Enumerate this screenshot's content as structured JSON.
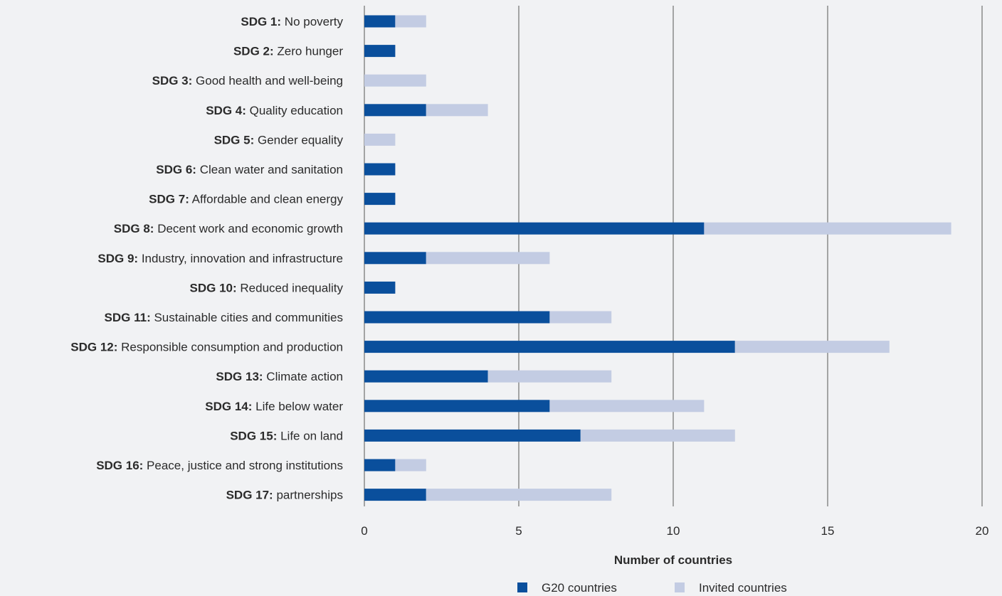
{
  "chart_data": {
    "type": "bar",
    "orientation": "horizontal",
    "stacked": true,
    "categories": [
      {
        "code": "SDG 1:",
        "name": "No poverty"
      },
      {
        "code": "SDG 2:",
        "name": "Zero hunger"
      },
      {
        "code": "SDG 3:",
        "name": "Good health and well-being"
      },
      {
        "code": "SDG 4:",
        "name": "Quality education"
      },
      {
        "code": "SDG 5:",
        "name": "Gender equality"
      },
      {
        "code": "SDG 6:",
        "name": "Clean water and sanitation"
      },
      {
        "code": "SDG 7:",
        "name": "Affordable and clean energy"
      },
      {
        "code": "SDG 8:",
        "name": "Decent work and economic growth"
      },
      {
        "code": "SDG 9:",
        "name": "Industry, innovation and infrastructure"
      },
      {
        "code": "SDG 10:",
        "name": "Reduced inequality"
      },
      {
        "code": "SDG 11:",
        "name": "Sustainable cities and communities"
      },
      {
        "code": "SDG 12:",
        "name": "Responsible consumption and production"
      },
      {
        "code": "SDG 13:",
        "name": "Climate action"
      },
      {
        "code": "SDG 14:",
        "name": "Life below water"
      },
      {
        "code": "SDG 15:",
        "name": "Life on land"
      },
      {
        "code": "SDG 16:",
        "name": "Peace, justice and strong institutions"
      },
      {
        "code": "SDG 17:",
        "name": "partnerships"
      }
    ],
    "series": [
      {
        "name": "G20 countries",
        "color": "#0a4f9c",
        "values": [
          1,
          1,
          0,
          2,
          0,
          1,
          1,
          11,
          2,
          1,
          6,
          12,
          4,
          6,
          7,
          1,
          2
        ]
      },
      {
        "name": "Invited countries",
        "color": "#c3cce3",
        "values": [
          1,
          0,
          2,
          2,
          1,
          0,
          0,
          8,
          4,
          0,
          2,
          5,
          4,
          5,
          5,
          1,
          6
        ]
      }
    ],
    "xlabel": "Number of countries",
    "xlim": [
      0,
      20
    ],
    "xticks": [
      0,
      5,
      10,
      15,
      20
    ],
    "grid": "vertical",
    "gridline_color": "#555555",
    "legend_position": "bottom"
  }
}
